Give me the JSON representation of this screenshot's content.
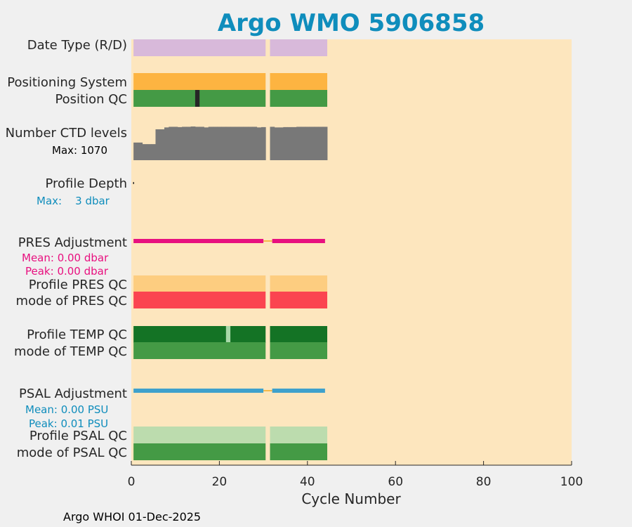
{
  "chart_data": {
    "type": "bar",
    "title": "Argo WMO 5906858",
    "xlabel": "Cycle Number",
    "xlim": [
      0,
      100
    ],
    "xticks": [
      "0",
      "20",
      "40",
      "60",
      "80",
      "100"
    ],
    "footer": "Argo WHOI 01-Dec-2025",
    "cycle_span": [
      1,
      44
    ],
    "missing_cycle": 31,
    "rows": [
      {
        "id": "date-type",
        "label": "Date Type (R/D)",
        "color": "#d8b9da"
      },
      {
        "id": "positioning-system",
        "label": "Positioning System",
        "color": "#fdb441"
      },
      {
        "id": "position-qc",
        "label": "Position QC",
        "color": "#449a45",
        "flagged_cycles": [
          15
        ],
        "flag_color": "#262626"
      },
      {
        "id": "ctd-levels",
        "label": "Number CTD levels",
        "note": "Max: 1070",
        "color": "#787878",
        "cycles": [
          1,
          2,
          3,
          4,
          5,
          6,
          7,
          8,
          9,
          10,
          11,
          12,
          13,
          14,
          15,
          16,
          17,
          18,
          19,
          20,
          21,
          22,
          23,
          24,
          25,
          26,
          27,
          28,
          29,
          30,
          32,
          33,
          34,
          35,
          36,
          37,
          38,
          39,
          40,
          41,
          42,
          43,
          44
        ],
        "values": [
          560,
          560,
          510,
          510,
          510,
          980,
          980,
          1040,
          1060,
          1060,
          1050,
          1060,
          1060,
          1070,
          1060,
          1060,
          1040,
          1060,
          1060,
          1060,
          1060,
          1060,
          1060,
          1060,
          1060,
          1060,
          1060,
          1060,
          1040,
          1050,
          1060,
          1040,
          1040,
          1050,
          1050,
          1050,
          1060,
          1060,
          1060,
          1060,
          1060,
          1060,
          1060
        ]
      },
      {
        "id": "profile-depth",
        "label": "Profile Depth",
        "note": "Max:    3 dbar",
        "note_color": "#0f8dbc",
        "color": "#262626",
        "max_value": 3
      },
      {
        "id": "pres-adjustment",
        "label": "PRES Adjustment",
        "notes": [
          "Mean: 0.00 dbar",
          "Peak: 0.00 dbar"
        ],
        "note_color": "#e8107f",
        "color": "#e8107f",
        "mean": 0.0,
        "peak": 0.0
      },
      {
        "id": "profile-pres-qc",
        "label": "Profile PRES QC",
        "color": "#fdcd80"
      },
      {
        "id": "mode-pres-qc",
        "label": "mode of PRES QC",
        "color": "#fb4450"
      },
      {
        "id": "profile-temp-qc",
        "label": "Profile TEMP QC",
        "color": "#147325",
        "flagged_cycles": [
          22
        ],
        "flag_color": "#a8d8a8"
      },
      {
        "id": "mode-temp-qc",
        "label": "mode of TEMP QC",
        "color": "#449a45"
      },
      {
        "id": "psal-adjustment",
        "label": "PSAL Adjustment",
        "notes": [
          "Mean: 0.00 PSU",
          "Peak: 0.01 PSU"
        ],
        "note_color": "#0f8dbc",
        "color": "#3fa1cc",
        "mean": 0.0,
        "peak": 0.01
      },
      {
        "id": "profile-psal-qc",
        "label": "Profile PSAL QC",
        "color": "#bcdcae"
      },
      {
        "id": "mode-psal-qc",
        "label": "mode of PSAL QC",
        "color": "#449a45"
      }
    ]
  },
  "colors": {
    "plot_bg": "#fde6be",
    "gap_line": "#f5b94a",
    "figure_bg": "#f0f0f0"
  }
}
